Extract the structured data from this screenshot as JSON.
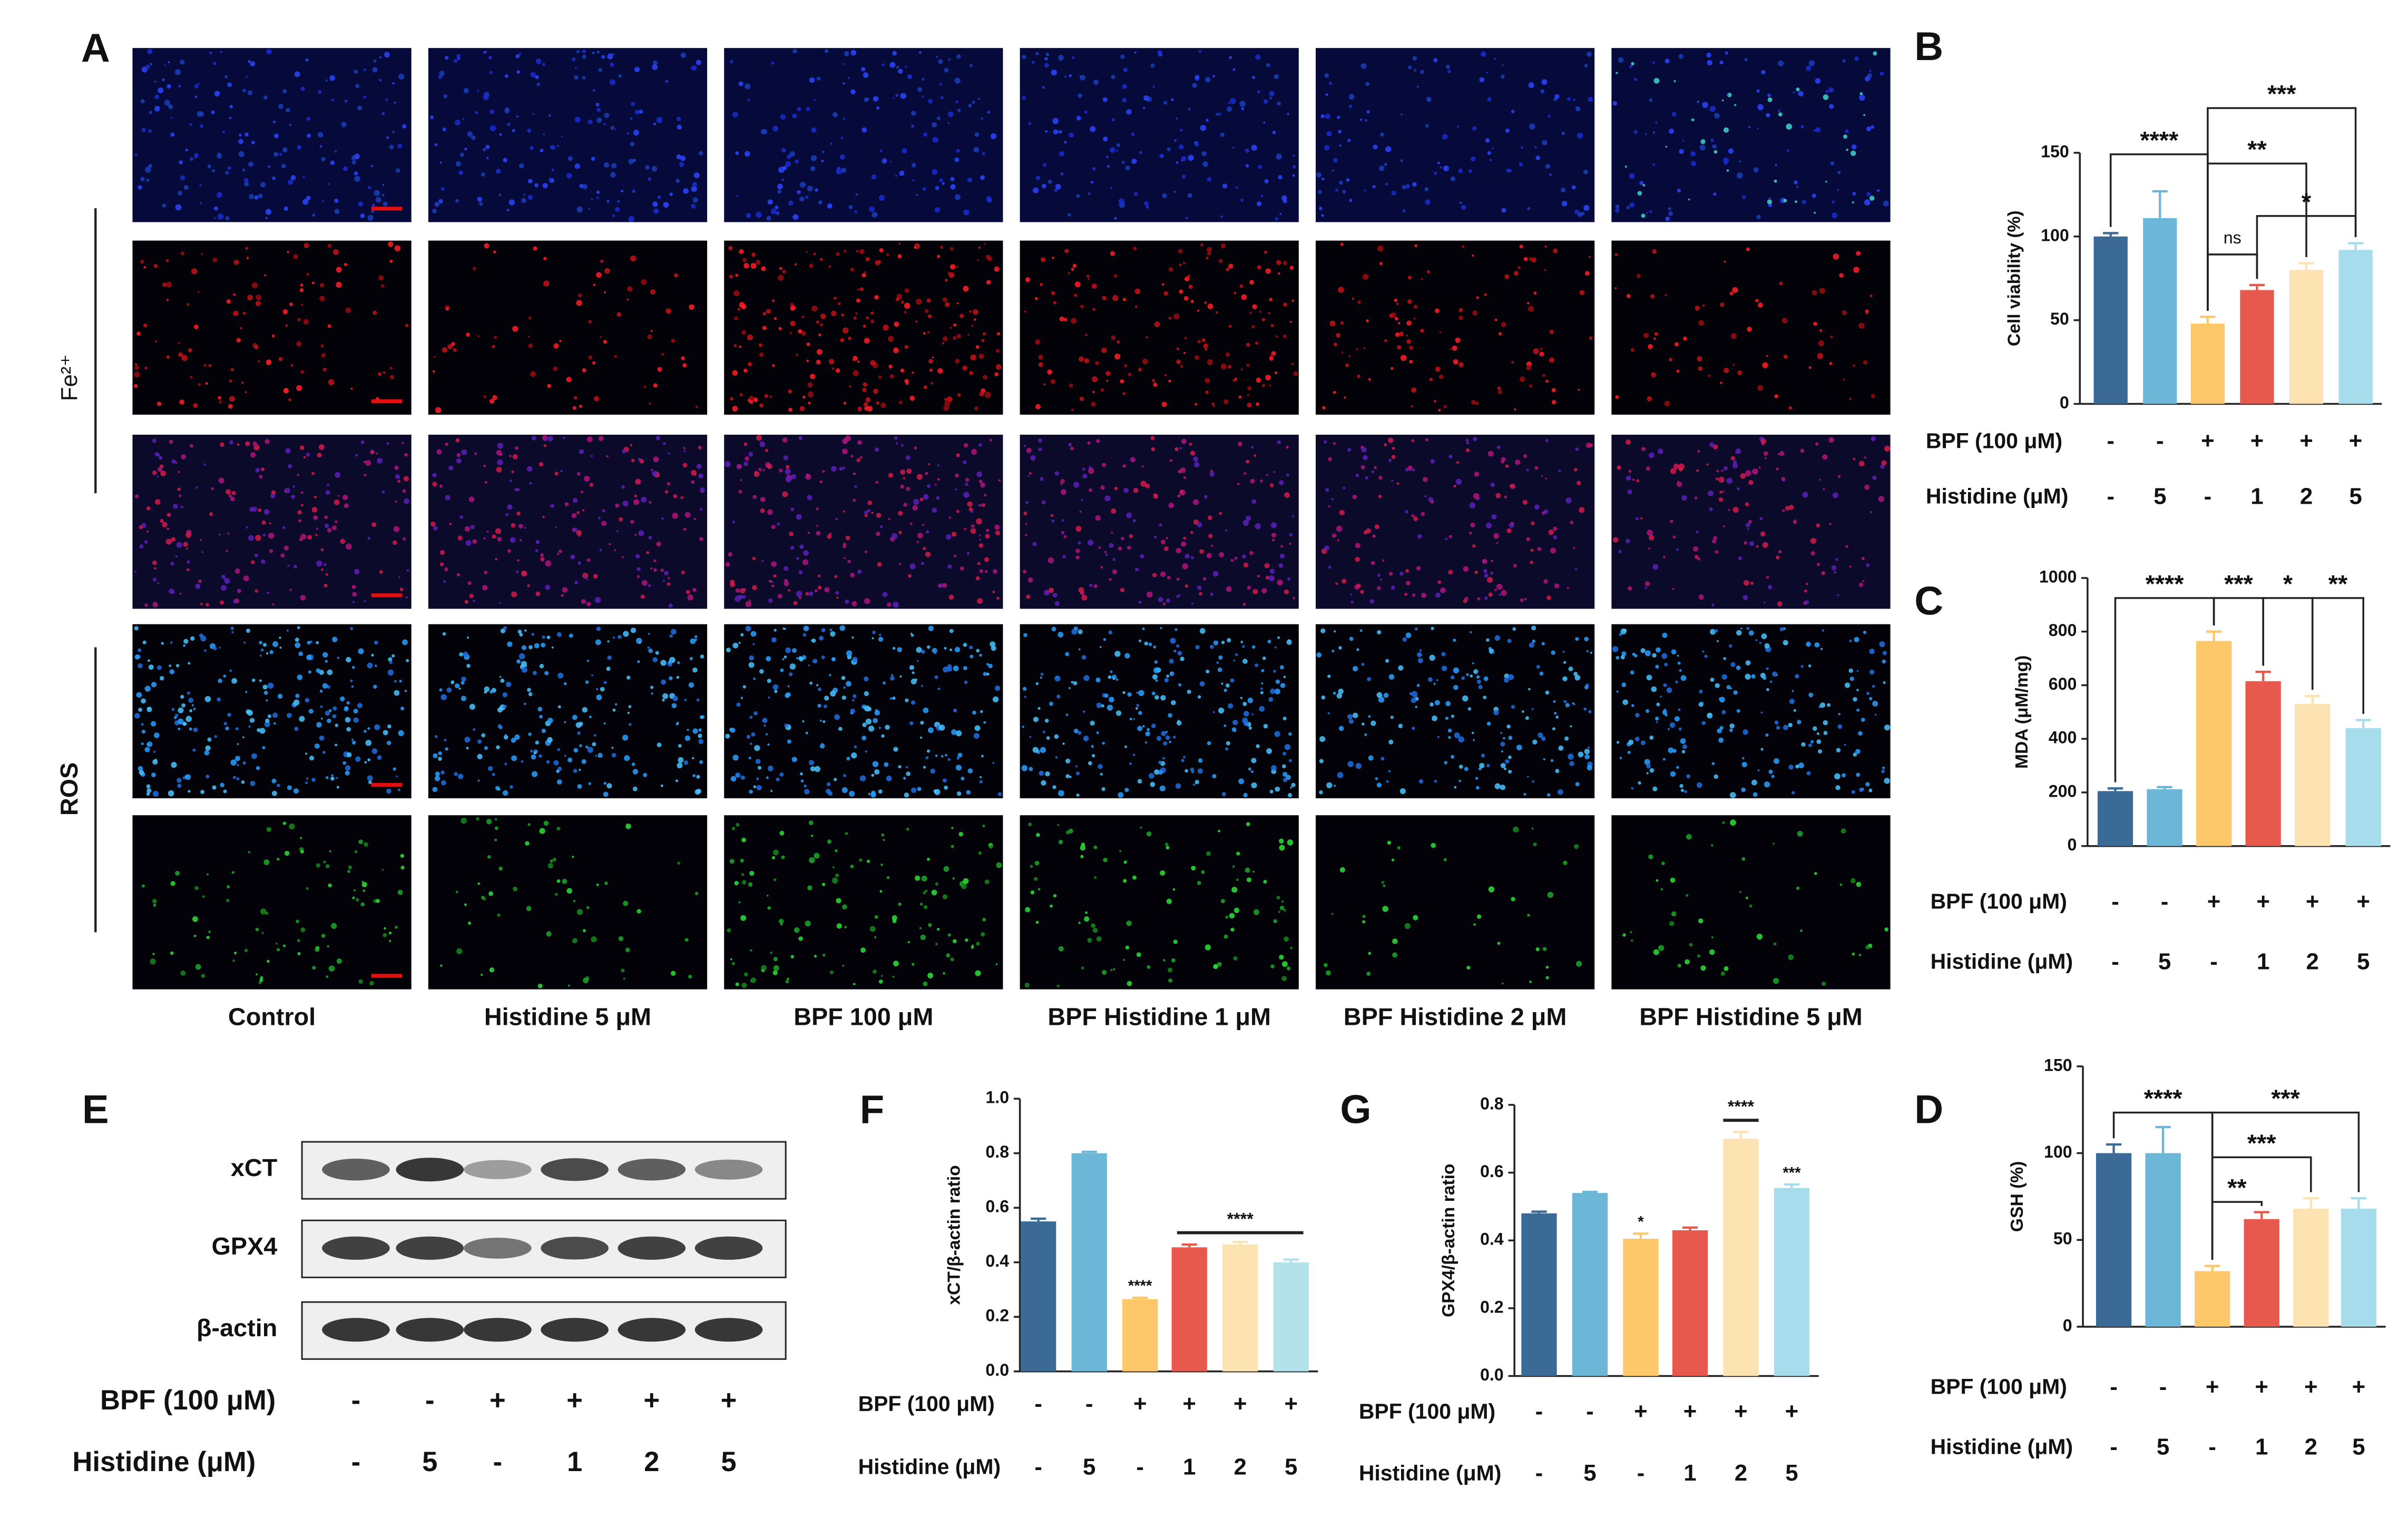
{
  "microscopy": {
    "panel": "A",
    "row_labels": [
      "Fe²⁺",
      "ROS"
    ],
    "columns": [
      "Control",
      "Histidine 5 μM",
      "BPF 100 μM",
      "BPF Histidine 1 μM",
      "BPF Histidine 2 μM",
      "BPF Histidine 5 μM"
    ]
  },
  "western_blot": {
    "panel": "E",
    "proteins": [
      "xCT",
      "GPX4",
      "β-actin"
    ],
    "treatments": [
      {
        "name": "BPF (100 μM)",
        "values": [
          "-",
          "-",
          "+",
          "+",
          "+",
          "+"
        ]
      },
      {
        "name": "Histidine (μM)",
        "values": [
          "-",
          "5",
          "-",
          "1",
          "2",
          "5"
        ]
      }
    ]
  },
  "chart_data": [
    {
      "type": "bar",
      "panel": "B",
      "ylabel": "Cell viability (%)",
      "categories": [
        null,
        null,
        null,
        null,
        null,
        null
      ],
      "values": [
        100,
        111,
        48,
        68,
        80,
        92
      ],
      "errors": [
        2,
        16,
        4,
        3,
        4,
        4
      ],
      "colors": [
        "#3a6a95",
        "#6cb7d8",
        "#fdc86a",
        "#e8594d",
        "#fde2b2",
        "#a6dcec"
      ],
      "ylim": [
        0,
        150
      ],
      "yticks": [
        0,
        50,
        100,
        150
      ],
      "comparisons": [
        {
          "label": "****",
          "groups": [
            0,
            2
          ]
        },
        {
          "label": "***",
          "groups": [
            2,
            5
          ]
        },
        {
          "label": "**",
          "groups": [
            2,
            4
          ]
        },
        {
          "label": "*",
          "groups": [
            3,
            5
          ]
        },
        {
          "label": "ns",
          "groups": [
            2,
            3
          ]
        }
      ],
      "treatments": [
        {
          "name": "BPF (100 μM)",
          "values": [
            "-",
            "-",
            "+",
            "+",
            "+",
            "+"
          ]
        },
        {
          "name": "Histidine (μM)",
          "values": [
            "-",
            "5",
            "-",
            "1",
            "2",
            "5"
          ]
        }
      ]
    },
    {
      "type": "bar",
      "panel": "C",
      "ylabel": "MDA (μM/mg)",
      "categories": [
        null,
        null,
        null,
        null,
        null,
        null
      ],
      "values": [
        205,
        212,
        765,
        615,
        530,
        440
      ],
      "errors": [
        10,
        8,
        35,
        35,
        30,
        30
      ],
      "colors": [
        "#3a6a95",
        "#6cb7d8",
        "#fdc86a",
        "#e8594d",
        "#fde2b2",
        "#a6dcec"
      ],
      "ylim": [
        0,
        1000
      ],
      "yticks": [
        0,
        200,
        400,
        600,
        800,
        1000
      ],
      "comparisons": [
        {
          "label": "****",
          "groups": [
            0,
            2
          ]
        },
        {
          "label": "***",
          "groups": [
            2,
            3
          ]
        },
        {
          "label": "*",
          "groups": [
            3,
            4
          ]
        },
        {
          "label": "**",
          "groups": [
            4,
            5
          ]
        }
      ],
      "treatments": [
        {
          "name": "BPF (100 μM)",
          "values": [
            "-",
            "-",
            "+",
            "+",
            "+",
            "+"
          ]
        },
        {
          "name": "Histidine (μM)",
          "values": [
            "-",
            "5",
            "-",
            "1",
            "2",
            "5"
          ]
        }
      ]
    },
    {
      "type": "bar",
      "panel": "D",
      "ylabel": "GSH (%)",
      "categories": [
        null,
        null,
        null,
        null,
        null,
        null
      ],
      "values": [
        100,
        100,
        32,
        62,
        68,
        68
      ],
      "errors": [
        5,
        15,
        3,
        4,
        6,
        6
      ],
      "colors": [
        "#3a6a95",
        "#6cb7d8",
        "#fdc86a",
        "#e8594d",
        "#fde2b2",
        "#a6dcec"
      ],
      "ylim": [
        0,
        150
      ],
      "yticks": [
        0,
        50,
        100,
        150
      ],
      "comparisons": [
        {
          "label": "****",
          "groups": [
            0,
            2
          ]
        },
        {
          "label": "***",
          "groups": [
            2,
            5
          ]
        },
        {
          "label": "***",
          "groups": [
            2,
            4
          ]
        },
        {
          "label": "**",
          "groups": [
            2,
            3
          ]
        }
      ],
      "treatments": [
        {
          "name": "BPF (100 μM)",
          "values": [
            "-",
            "-",
            "+",
            "+",
            "+",
            "+"
          ]
        },
        {
          "name": "Histidine (μM)",
          "values": [
            "-",
            "5",
            "-",
            "1",
            "2",
            "5"
          ]
        }
      ]
    },
    {
      "type": "bar",
      "panel": "F",
      "ylabel": "xCT/β-actin ratio",
      "categories": [
        null,
        null,
        null,
        null,
        null,
        null
      ],
      "values": [
        0.55,
        0.8,
        0.265,
        0.455,
        0.465,
        0.4
      ],
      "errors": [
        0.01,
        0.005,
        0.005,
        0.01,
        0.01,
        0.01
      ],
      "colors": [
        "#3a6a95",
        "#6cb7d8",
        "#fdc86a",
        "#e8594d",
        "#fde2b2",
        "#b3e2ea"
      ],
      "ylim": [
        0,
        1.0
      ],
      "yticks": [
        {
          "value": 0,
          "label": "0.0"
        },
        0.2,
        0.4,
        0.6,
        0.8,
        {
          "value": 1.0,
          "label": "1.0"
        }
      ],
      "bar_marks": [
        null,
        null,
        "****",
        null,
        null,
        null
      ],
      "comparisons": [
        {
          "label": "****",
          "groups": [
            3,
            5
          ]
        }
      ],
      "treatments": [
        {
          "name": "BPF (100 μM)",
          "values": [
            "-",
            "-",
            "+",
            "+",
            "+",
            "+"
          ]
        },
        {
          "name": "Histidine (μM)",
          "values": [
            "-",
            "5",
            "-",
            "1",
            "2",
            "5"
          ]
        }
      ]
    },
    {
      "type": "bar",
      "panel": "G",
      "ylabel": "GPX4/β-actin ratio",
      "categories": [
        null,
        null,
        null,
        null,
        null,
        null
      ],
      "values": [
        0.48,
        0.54,
        0.405,
        0.43,
        0.7,
        0.555
      ],
      "errors": [
        0.005,
        0.003,
        0.015,
        0.008,
        0.02,
        0.01
      ],
      "colors": [
        "#3a6a95",
        "#6cb7d8",
        "#fdc86a",
        "#e8594d",
        "#fde2b2",
        "#a6dcec"
      ],
      "ylim": [
        0,
        0.8
      ],
      "yticks": [
        {
          "value": 0,
          "label": "0.0"
        },
        0.2,
        0.4,
        0.6,
        0.8
      ],
      "bar_marks": [
        null,
        null,
        "*",
        null,
        null,
        "***"
      ],
      "comparisons": [
        {
          "label": "****",
          "groups": [
            4,
            4
          ]
        }
      ],
      "treatments": [
        {
          "name": "BPF (100 μM)",
          "values": [
            "-",
            "-",
            "+",
            "+",
            "+",
            "+"
          ]
        },
        {
          "name": "Histidine (μM)",
          "values": [
            "-",
            "5",
            "-",
            "1",
            "2",
            "5"
          ]
        }
      ]
    }
  ]
}
